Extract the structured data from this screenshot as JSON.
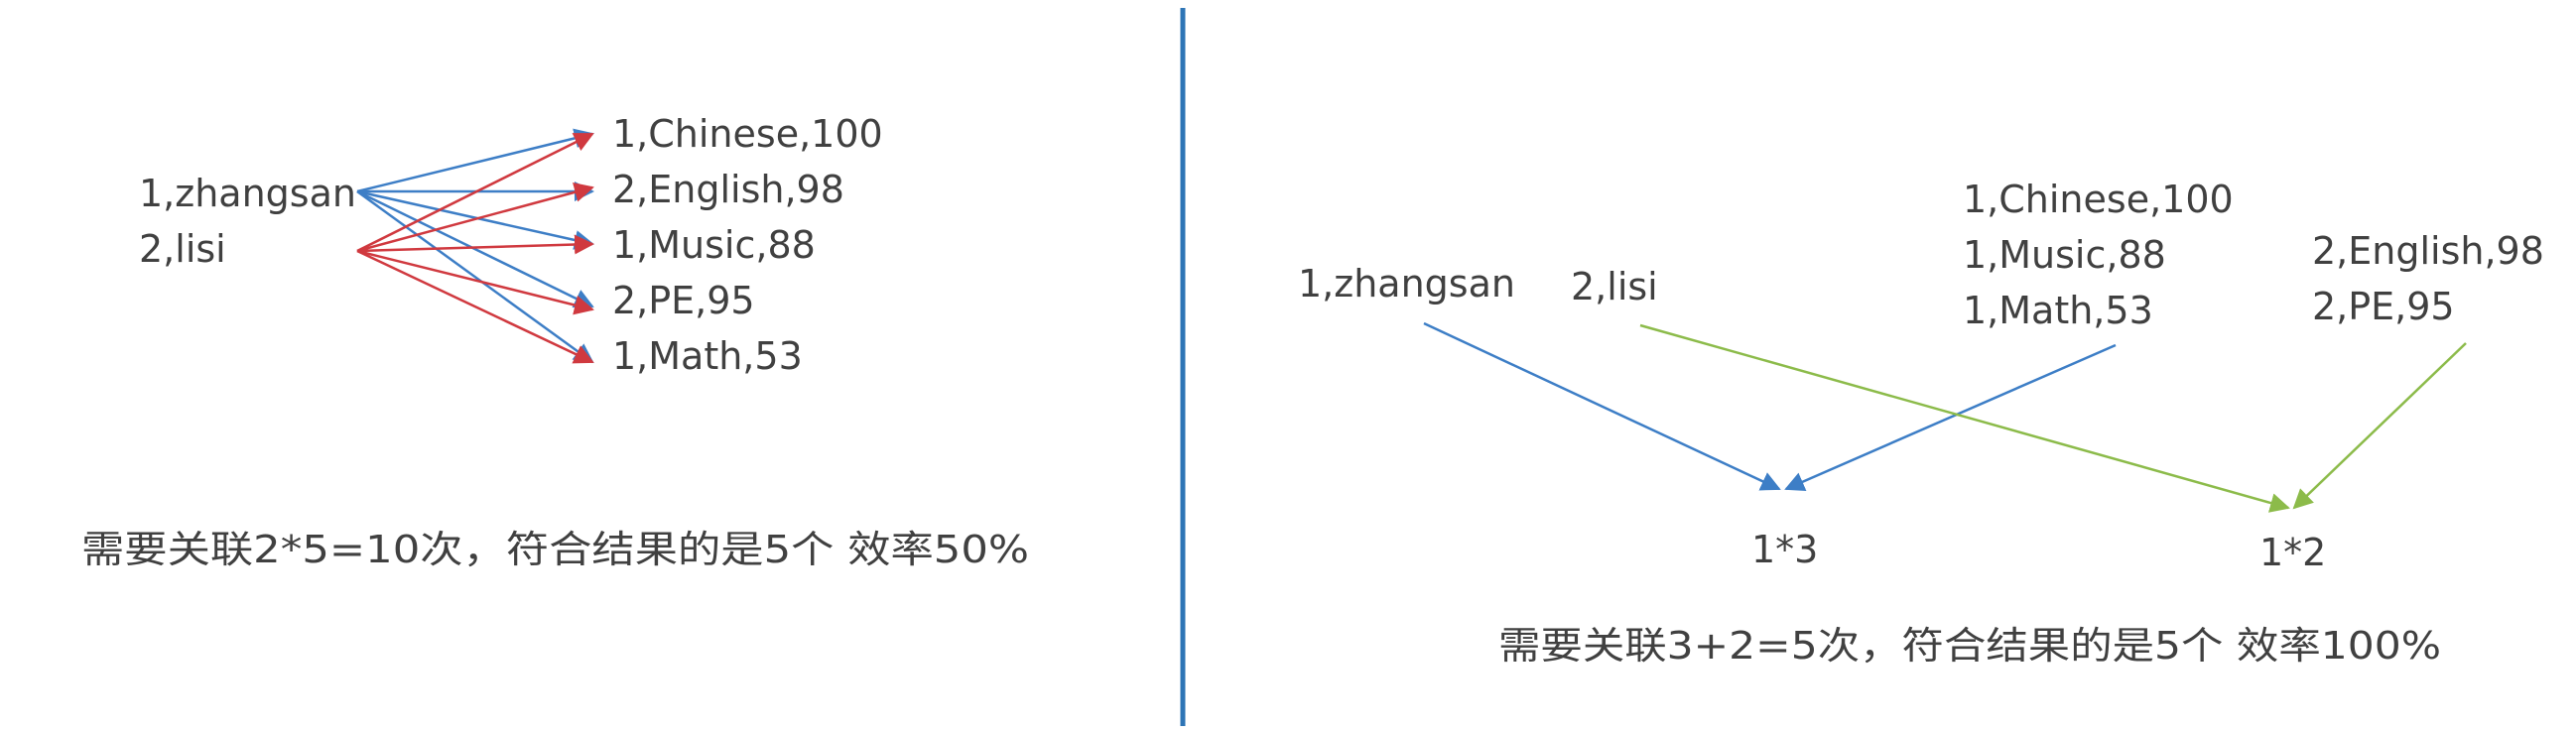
{
  "left": {
    "students": [
      "1,zhangsan",
      "2,lisi"
    ],
    "scores": [
      "1,Chinese,100",
      "2,English,98",
      "1,Music,88",
      "2,PE,95",
      "1,Math,53"
    ],
    "caption": "需要关联2*5=10次，符合结果的是5个 效率50%"
  },
  "right": {
    "student1": "1,zhangsan",
    "student2": "2,lisi",
    "group1": [
      "1,Chinese,100",
      "1,Music,88",
      "1,Math,53"
    ],
    "group2": [
      "2,English,98",
      "2,PE,95"
    ],
    "result1": "1*3",
    "result2": "1*2",
    "caption": "需要关联3+2=5次，符合结果的是5个 效率100%"
  },
  "colors": {
    "blue": "#3D7EC6",
    "red": "#D0393F",
    "green": "#8CBB4A",
    "divider": "#2E75B6",
    "text": "#404040"
  }
}
